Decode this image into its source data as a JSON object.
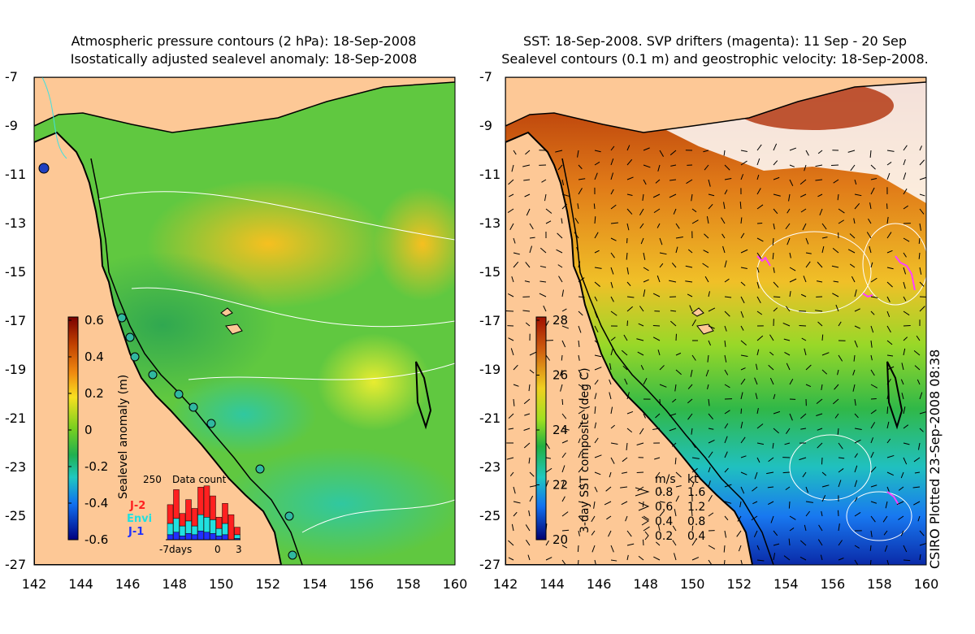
{
  "left_panel": {
    "title_line1": "Atmospheric pressure contours (2 hPa): 18-Sep-2008",
    "title_line2": "Isostatically adjusted sealevel anomaly: 18-Sep-2008",
    "colorbar_label": "Sealevel anomaly (m)",
    "colorbar_ticks": [
      "0.6",
      "0.4",
      "0.2",
      "0",
      "-0.2",
      "-0.4",
      "-0.6"
    ],
    "inset": {
      "title": "Data count",
      "max_label": "250",
      "legend": [
        "J-2",
        "Envi",
        "J-1"
      ],
      "legend_colors": [
        "#ff2020",
        "#20e0e0",
        "#2030ff"
      ],
      "x_labels": [
        "-7days",
        "0",
        "3"
      ],
      "bars_j2": [
        150,
        230,
        100,
        170,
        140,
        220,
        250,
        190,
        90,
        160,
        200,
        60
      ],
      "bars_envi": [
        90,
        110,
        80,
        100,
        70,
        130,
        120,
        110,
        60,
        90,
        0,
        30
      ],
      "bars_j1": [
        40,
        60,
        30,
        50,
        40,
        70,
        60,
        50,
        30,
        40,
        0,
        10
      ]
    }
  },
  "right_panel": {
    "title_line1": "SST: 18-Sep-2008. SVP drifters (magenta): 11 Sep - 20 Sep",
    "title_line2": "Sealevel contours (0.1 m) and geostrophic velocity: 18-Sep-2008.",
    "colorbar_label": "3-day SST composite (deg C)",
    "colorbar_ticks": [
      "28",
      "26",
      "24",
      "22",
      "20"
    ],
    "velocity_legend": {
      "header_ms": "m/s",
      "header_kt": "kt",
      "rows": [
        {
          "ms": "0.8",
          "kt": "1.6"
        },
        {
          "ms": "0.6",
          "kt": "1.2"
        },
        {
          "ms": "0.4",
          "kt": "0.8"
        },
        {
          "ms": "0.2",
          "kt": "0.4"
        }
      ]
    }
  },
  "axes": {
    "y_ticks": [
      "-7",
      "-9",
      "-11",
      "-13",
      "-15",
      "-17",
      "-19",
      "-21",
      "-23",
      "-25",
      "-27"
    ],
    "x_ticks": [
      "142",
      "144",
      "146",
      "148",
      "150",
      "152",
      "154",
      "156",
      "158",
      "160"
    ],
    "lon_range": [
      142,
      160
    ],
    "lat_range": [
      -27,
      -7
    ]
  },
  "credit": "CSIRO Plotted 23-Sep-2008 08:38",
  "colors": {
    "land": "#fdc896",
    "coast": "#000000",
    "contour": "#ffffff",
    "drifter": "#ff40ff"
  }
}
